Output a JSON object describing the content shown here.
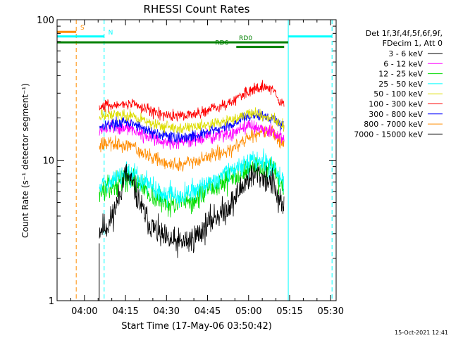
{
  "chart_data": {
    "type": "line",
    "title": "RHESSI Count Rates",
    "xlabel": "Start Time (17-May-06 03:50:42)",
    "ylabel": "Count Rate (s⁻¹ detector segment⁻¹)",
    "y_scale": "log",
    "ylim": [
      1,
      100
    ],
    "xlim_minutes_after_0350": [
      0,
      102
    ],
    "x_ticks": [
      {
        "label": "04:00",
        "minutes_after_0350": 10
      },
      {
        "label": "04:15",
        "minutes_after_0350": 25
      },
      {
        "label": "04:30",
        "minutes_after_0350": 40
      },
      {
        "label": "04:45",
        "minutes_after_0350": 55
      },
      {
        "label": "05:00",
        "minutes_after_0350": 70
      },
      {
        "label": "05:15",
        "minutes_after_0350": 85
      },
      {
        "label": "05:30",
        "minutes_after_0350": 100
      }
    ],
    "y_ticks": [
      {
        "label": "1",
        "value": 1
      },
      {
        "label": "10",
        "value": 10
      },
      {
        "label": "100",
        "value": 100
      }
    ],
    "legend": {
      "placement": "right",
      "header": [
        "Det 1f,3f,4f,5f,6f,9f,",
        "FDecim 1, Att 0"
      ]
    },
    "footer_timestamp": "15-Oct-2021 12:41",
    "data_window_minutes": [
      15.4,
      83.0
    ],
    "time_minutes": [
      15.4,
      19,
      22,
      25,
      28,
      31,
      34,
      37,
      40,
      43,
      46,
      49,
      52,
      55,
      58,
      61,
      64,
      67,
      70,
      73,
      76,
      79,
      81,
      83
    ],
    "series": [
      {
        "name": "3 - 6 keV",
        "color": "#000000",
        "seed": 11,
        "noise": 0.05,
        "values": [
          3.2,
          3.5,
          5.0,
          8.0,
          6.5,
          4.5,
          3.5,
          3.0,
          2.7,
          2.6,
          2.6,
          2.7,
          3.0,
          3.5,
          4.0,
          4.3,
          5.0,
          6.2,
          7.5,
          8.0,
          7.5,
          6.8,
          5.0,
          4.5
        ]
      },
      {
        "name": "6 - 12 keV",
        "color": "#ff00ff",
        "seed": 12,
        "noise": 0.025,
        "values": [
          16.5,
          17.0,
          17.0,
          17.0,
          16.5,
          15.5,
          14.5,
          14.0,
          13.5,
          13.3,
          13.5,
          13.8,
          14.0,
          14.5,
          15.0,
          15.3,
          15.5,
          16.5,
          17.5,
          17.5,
          16.5,
          16.0,
          15.0,
          14.5
        ]
      },
      {
        "name": "12 - 25 keV",
        "color": "#00dd00",
        "seed": 13,
        "noise": 0.04,
        "values": [
          6.0,
          6.3,
          6.8,
          7.5,
          7.2,
          6.6,
          5.8,
          5.2,
          5.0,
          4.9,
          4.9,
          5.0,
          5.5,
          6.0,
          6.5,
          7.0,
          7.5,
          8.2,
          8.8,
          9.0,
          8.8,
          8.3,
          7.0,
          6.3
        ]
      },
      {
        "name": "25 - 50 keV",
        "color": "#00ffff",
        "seed": 14,
        "noise": 0.04,
        "values": [
          6.8,
          7.0,
          7.4,
          8.0,
          7.8,
          7.2,
          6.5,
          6.0,
          5.8,
          5.6,
          5.6,
          5.8,
          6.2,
          6.7,
          7.2,
          7.8,
          8.3,
          9.0,
          9.6,
          9.8,
          9.5,
          9.0,
          7.8,
          7.0
        ]
      },
      {
        "name": "50 - 100 keV",
        "color": "#dddd00",
        "seed": 15,
        "noise": 0.02,
        "values": [
          20.5,
          21.0,
          21.0,
          21.0,
          20.5,
          19.5,
          18.5,
          17.8,
          17.2,
          17.0,
          17.0,
          17.2,
          17.5,
          18.0,
          18.5,
          19.0,
          19.5,
          20.5,
          21.5,
          21.5,
          20.5,
          20.0,
          18.5,
          17.5
        ]
      },
      {
        "name": "100 - 300 keV",
        "color": "#ff0000",
        "seed": 16,
        "noise": 0.02,
        "values": [
          24.0,
          24.5,
          25.0,
          25.5,
          25.0,
          24.0,
          22.5,
          21.5,
          21.0,
          20.5,
          20.5,
          21.0,
          21.5,
          22.5,
          23.5,
          24.5,
          26.0,
          29.0,
          31.0,
          32.0,
          33.0,
          32.0,
          27.0,
          25.0
        ]
      },
      {
        "name": "300 - 800 keV",
        "color": "#0000ff",
        "seed": 17,
        "noise": 0.02,
        "values": [
          17.5,
          18.0,
          18.3,
          18.5,
          18.0,
          17.0,
          16.0,
          15.3,
          14.8,
          14.5,
          14.5,
          14.8,
          15.2,
          15.8,
          16.5,
          17.0,
          18.0,
          19.5,
          20.5,
          20.8,
          20.5,
          20.0,
          18.5,
          17.5
        ]
      },
      {
        "name": "800 - 7000 keV",
        "color": "#ff8c00",
        "seed": 18,
        "noise": 0.025,
        "values": [
          13.0,
          13.2,
          13.0,
          12.8,
          12.3,
          11.5,
          10.5,
          10.0,
          9.5,
          9.3,
          9.3,
          9.5,
          10.0,
          10.5,
          11.0,
          11.5,
          12.0,
          13.5,
          15.0,
          15.5,
          16.0,
          15.5,
          14.0,
          13.0
        ]
      },
      {
        "name": "7000 - 15000 keV",
        "color": "#000000",
        "seed": 19,
        "noise": 0.0,
        "values": []
      }
    ],
    "annotations": {
      "bars": [
        {
          "label": "S",
          "color": "#ff8c00",
          "level": 82,
          "x_range": [
            0,
            7.0
          ],
          "label_at": 8.5
        },
        {
          "label": "N",
          "color": "#00ffff",
          "level": 76,
          "x_range": [
            0,
            17.2
          ],
          "label_at": 18.7
        },
        {
          "label": "N",
          "color": "#00ffff",
          "level": 76,
          "x_range": [
            84.5,
            100.5
          ],
          "label_at": null
        },
        {
          "label": "RD0",
          "color": "#008000",
          "level": 69,
          "x_range": [
            0,
            84.5
          ],
          "label_at": 66.5
        },
        {
          "label": "RD6",
          "color": "#008000",
          "level": 64,
          "x_range": [
            65.5,
            83.0
          ],
          "label_at": 57.8
        }
      ],
      "vlines": [
        {
          "x": 0.0,
          "color": "#00ffff",
          "dash": false
        },
        {
          "x": 7.0,
          "color": "#ff8c00",
          "dash": true
        },
        {
          "x": 17.2,
          "color": "#00ffff",
          "dash": true
        },
        {
          "x": 84.5,
          "color": "#00ffff",
          "dash": false
        },
        {
          "x": 100.5,
          "color": "#00ffff",
          "dash": true
        }
      ]
    }
  }
}
